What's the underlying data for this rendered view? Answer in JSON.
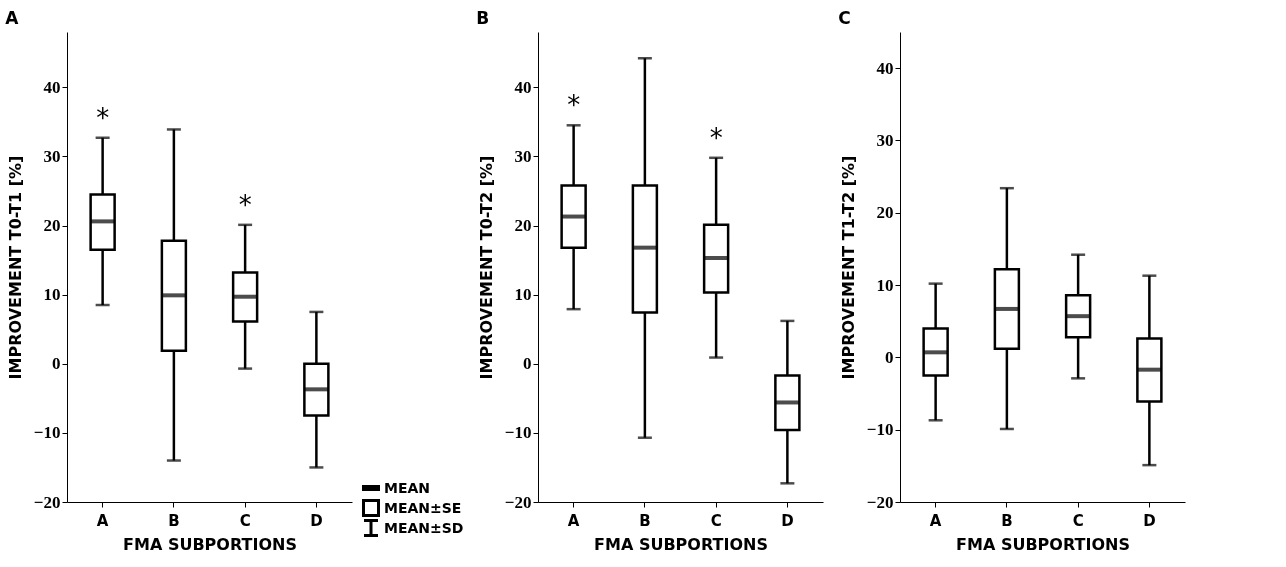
{
  "chart_data": [
    {
      "type": "box",
      "title": "A",
      "xlabel": "FMA SUBPORTIONS",
      "ylabel": "IMPROVEMENT T0-T1 [%]",
      "categories": [
        "A",
        "B",
        "C",
        "D"
      ],
      "ylim": [
        -20,
        48
      ],
      "yticks": [
        -20,
        -10,
        0,
        10,
        20,
        30,
        40
      ],
      "boxes": [
        {
          "low": 8.5,
          "q1": 16.5,
          "median": 20.6,
          "q3": 24.5,
          "high": 32.7
        },
        {
          "low": -14.0,
          "q1": 1.9,
          "median": 9.9,
          "q3": 17.8,
          "high": 33.9
        },
        {
          "low": -0.7,
          "q1": 6.1,
          "median": 9.7,
          "q3": 13.2,
          "high": 20.1
        },
        {
          "low": -15.0,
          "q1": -7.5,
          "median": -3.7,
          "q3": 0,
          "high": 7.5
        }
      ],
      "value_labels": [
        "*",
        null,
        "*",
        null
      ],
      "annotations": [
        "MEAN",
        "MEAN±SE",
        "MEAN±SD"
      ]
    },
    {
      "type": "box",
      "title": "B",
      "xlabel": "FMA SUBPORTIONS",
      "ylabel": "IMPROVEMENT T0-T2 [%]",
      "categories": [
        "A",
        "B",
        "C",
        "D"
      ],
      "ylim": [
        -20,
        48
      ],
      "yticks": [
        -20,
        -10,
        0,
        10,
        20,
        30,
        40
      ],
      "boxes": [
        {
          "low": 7.9,
          "q1": 16.8,
          "median": 21.3,
          "q3": 25.8,
          "high": 34.5
        },
        {
          "low": -10.7,
          "q1": 7.4,
          "median": 16.8,
          "q3": 25.8,
          "high": 44.2
        },
        {
          "low": 0.9,
          "q1": 10.3,
          "median": 15.3,
          "q3": 20.1,
          "high": 29.8
        },
        {
          "low": -17.3,
          "q1": -9.6,
          "median": -5.6,
          "q3": -1.7,
          "high": 6.2
        }
      ],
      "value_labels": [
        "*",
        null,
        "*",
        null
      ]
    },
    {
      "type": "box",
      "title": "C",
      "xlabel": "FMA SUBPORTIONS",
      "ylabel": "IMPROVEMENT T1-T2 [%]",
      "categories": [
        "A",
        "B",
        "C",
        "D"
      ],
      "ylim": [
        -20,
        45
      ],
      "yticks": [
        -20,
        -10,
        0,
        10,
        20,
        30,
        40
      ],
      "boxes": [
        {
          "low": -8.7,
          "q1": -2.5,
          "median": 0.7,
          "q3": 4.0,
          "high": 10.2
        },
        {
          "low": -9.9,
          "q1": 1.2,
          "median": 6.7,
          "q3": 12.2,
          "high": 23.4
        },
        {
          "low": -2.9,
          "q1": 2.8,
          "median": 5.7,
          "q3": 8.6,
          "high": 14.2
        },
        {
          "low": -14.9,
          "q1": -6.1,
          "median": -1.7,
          "q3": 2.6,
          "high": 11.3
        }
      ]
    }
  ]
}
